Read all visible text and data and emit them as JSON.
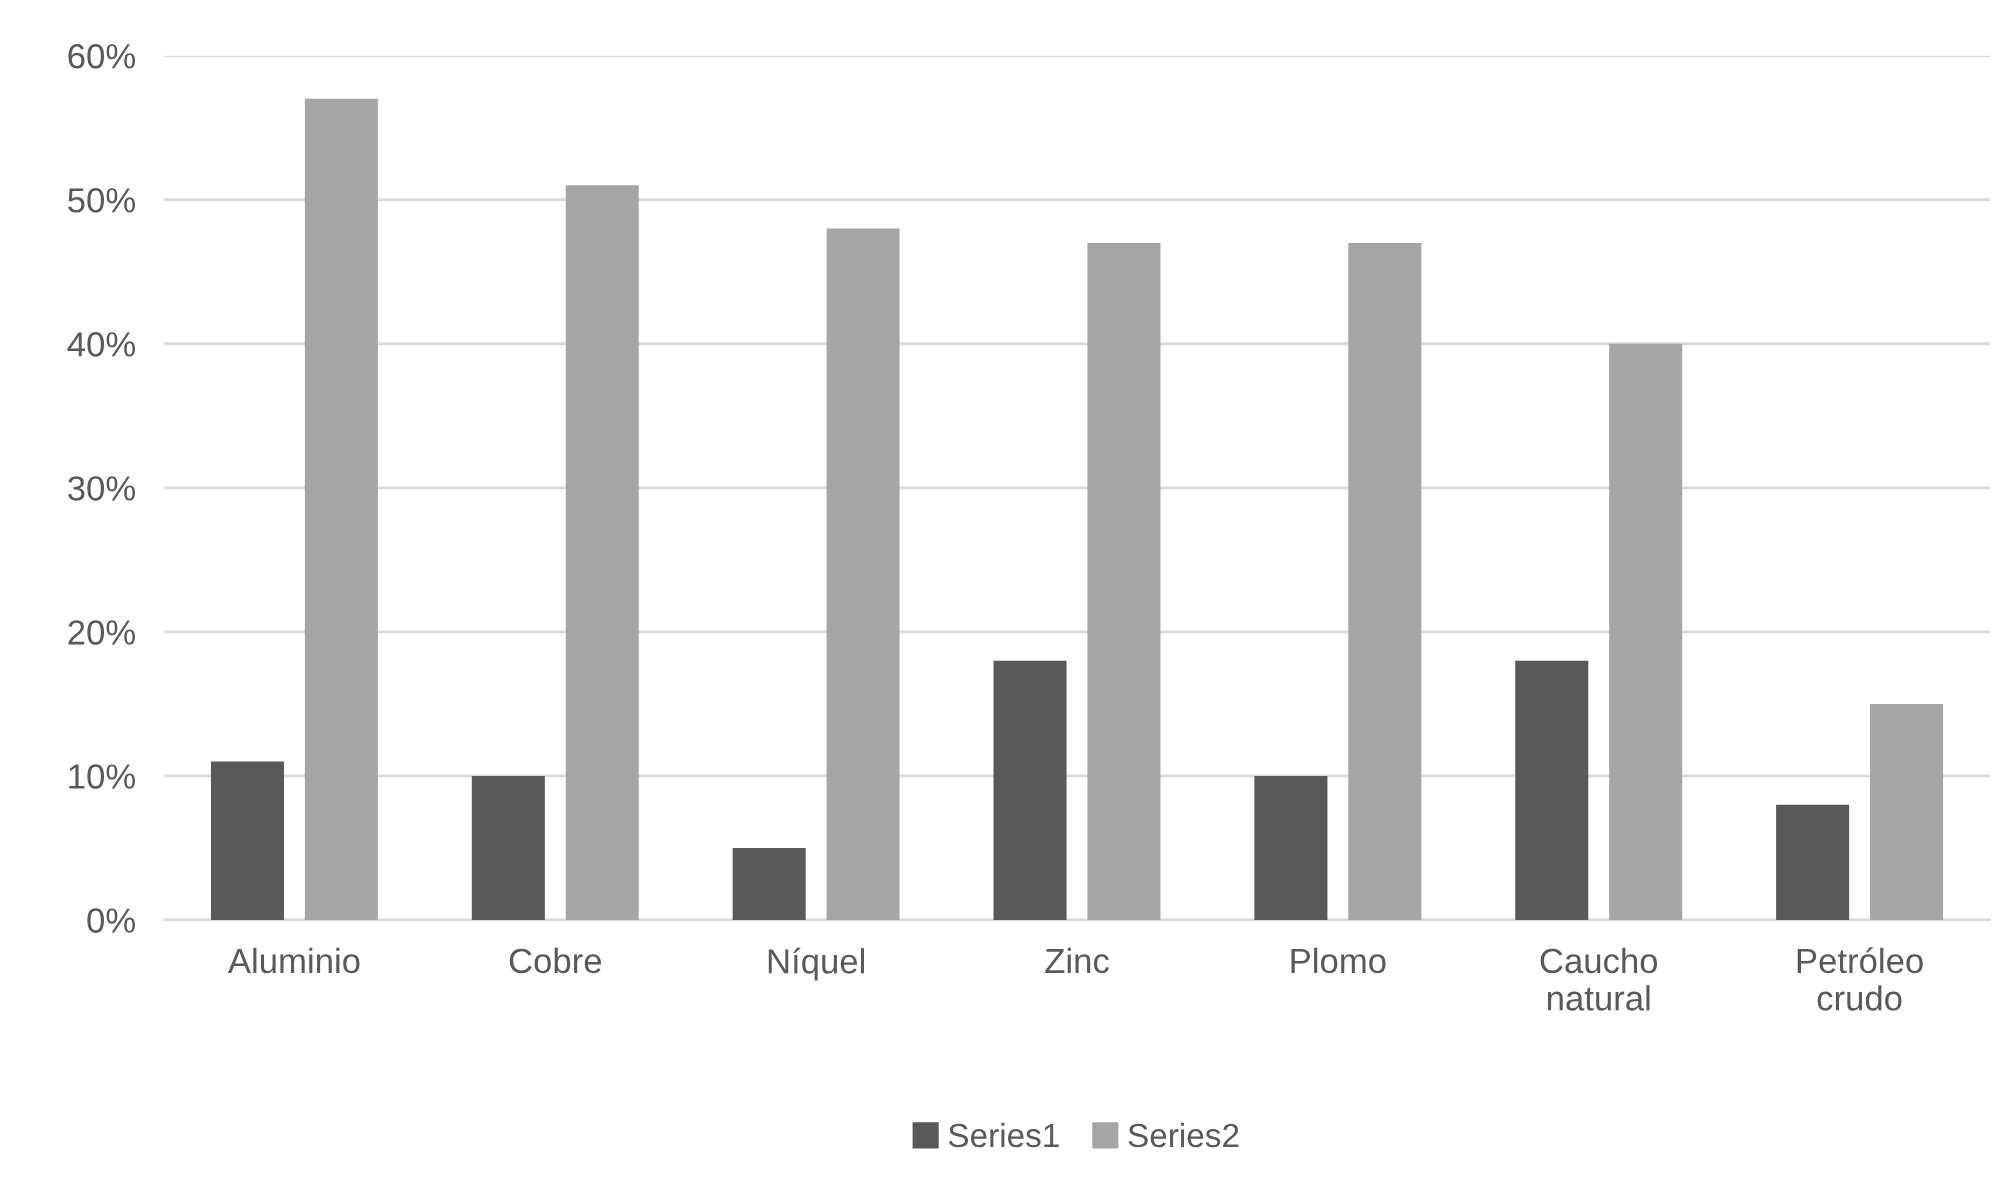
{
  "chart_data": {
    "type": "bar",
    "categories": [
      "Aluminio",
      "Cobre",
      "Níquel",
      "Zinc",
      "Plomo",
      "Caucho\nnatural",
      "Petróleo\ncrudo"
    ],
    "series": [
      {
        "name": "Series1",
        "color": "#595959",
        "values": [
          11,
          10,
          5,
          18,
          10,
          18,
          8
        ]
      },
      {
        "name": "Series2",
        "color": "#a5a5a5",
        "values": [
          57,
          51,
          48,
          47,
          47,
          40,
          15
        ]
      }
    ],
    "ylim": [
      0,
      60
    ],
    "yticks": [
      {
        "value": 0,
        "label": "0%"
      },
      {
        "value": 10,
        "label": "10%"
      },
      {
        "value": 20,
        "label": "20%"
      },
      {
        "value": 30,
        "label": "30%"
      },
      {
        "value": 40,
        "label": "40%"
      },
      {
        "value": 50,
        "label": "50%"
      },
      {
        "value": 60,
        "label": "60%"
      }
    ],
    "grid": "y",
    "legend": "bottom"
  }
}
